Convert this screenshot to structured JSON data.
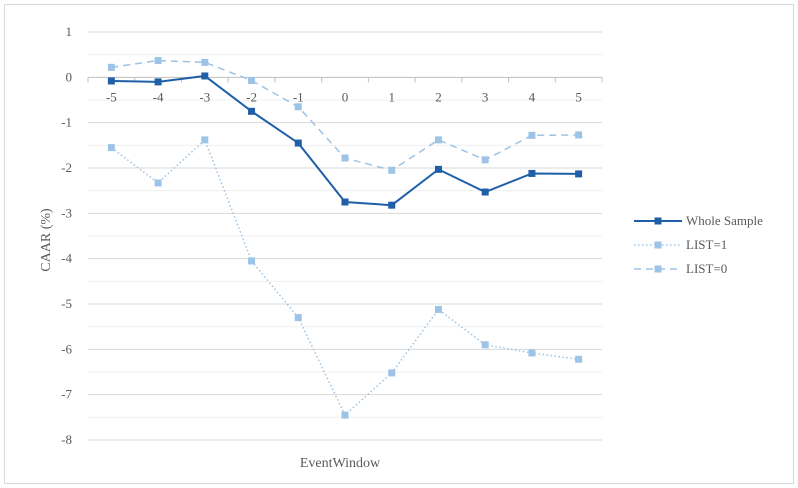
{
  "chart_data": {
    "type": "line",
    "title": "",
    "xlabel": "EventWindow",
    "ylabel": "CAAR (%)",
    "ylim": [
      -8,
      1
    ],
    "yticks": [
      1,
      0,
      -1,
      -2,
      -3,
      -4,
      -5,
      -6,
      -7,
      -8
    ],
    "x": [
      -5,
      -4,
      -3,
      -2,
      -1,
      0,
      1,
      2,
      3,
      4,
      5
    ],
    "x_tick_labels": [
      "-5",
      "-4",
      "-3",
      "-2",
      "-1",
      "0",
      "1",
      "2",
      "3",
      "4",
      "5"
    ],
    "x_axis_crosses_at": 0,
    "minor_gridlines": true,
    "legend_position": "right",
    "series": [
      {
        "name": "Whole Sample",
        "values": [
          -0.08,
          -0.1,
          0.03,
          -0.75,
          -1.45,
          -2.75,
          -2.82,
          -2.03,
          -2.53,
          -2.12,
          -2.13
        ],
        "color": "#1f5fa8",
        "style": "solid"
      },
      {
        "name": "LIST=1",
        "values": [
          -1.55,
          -2.33,
          -1.38,
          -4.05,
          -5.3,
          -7.45,
          -6.52,
          -5.12,
          -5.9,
          -6.08,
          -6.22
        ],
        "color": "#9dc3e6",
        "style": "dotted"
      },
      {
        "name": "LIST=0",
        "values": [
          0.22,
          0.37,
          0.33,
          -0.07,
          -0.65,
          -1.78,
          -2.05,
          -1.38,
          -1.82,
          -1.28,
          -1.27
        ],
        "color": "#9dc3e6",
        "style": "dashed"
      }
    ]
  }
}
